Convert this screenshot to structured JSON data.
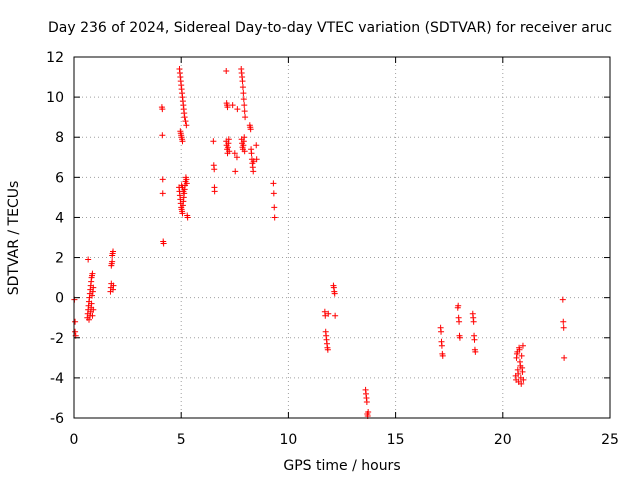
{
  "chart_data": {
    "type": "scatter",
    "title": "Day 236 of 2024, Sidereal Day-to-day VTEC variation (SDTVAR) for receiver aruc",
    "xlabel": "GPS time / hours",
    "ylabel": "SDTVAR / TECUs",
    "xlim": [
      0,
      25
    ],
    "ylim": [
      -6,
      12
    ],
    "xticks": [
      0,
      5,
      10,
      15,
      20,
      25
    ],
    "yticks": [
      -6,
      -4,
      -2,
      0,
      2,
      4,
      6,
      8,
      10,
      12
    ],
    "grid": true,
    "marker": "plus",
    "color": "#ff0000",
    "series": [
      {
        "name": "SDTVAR",
        "points": [
          [
            0.02,
            -0.1
          ],
          [
            0.05,
            -1.2
          ],
          [
            0.05,
            -1.7
          ],
          [
            0.08,
            -1.9
          ],
          [
            0.62,
            -1.0
          ],
          [
            0.64,
            -0.8
          ],
          [
            0.66,
            -0.6
          ],
          [
            0.66,
            1.9
          ],
          [
            0.68,
            -0.4
          ],
          [
            0.7,
            -0.2
          ],
          [
            0.7,
            -1.1
          ],
          [
            0.72,
            0.0
          ],
          [
            0.74,
            0.2
          ],
          [
            0.75,
            -0.9
          ],
          [
            0.76,
            0.4
          ],
          [
            0.78,
            0.6
          ],
          [
            0.78,
            -0.7
          ],
          [
            0.8,
            0.8
          ],
          [
            0.8,
            -0.5
          ],
          [
            0.82,
            1.0
          ],
          [
            0.82,
            -0.3
          ],
          [
            0.84,
            1.1
          ],
          [
            0.84,
            0.1
          ],
          [
            0.86,
            1.2
          ],
          [
            0.86,
            -0.9
          ],
          [
            0.88,
            0.3
          ],
          [
            0.9,
            0.5
          ],
          [
            0.9,
            -0.6
          ],
          [
            1.7,
            0.3
          ],
          [
            1.72,
            0.5
          ],
          [
            1.74,
            0.7
          ],
          [
            1.74,
            1.6
          ],
          [
            1.76,
            1.7
          ],
          [
            1.78,
            1.8
          ],
          [
            1.78,
            2.1
          ],
          [
            1.8,
            2.2
          ],
          [
            1.82,
            2.3
          ],
          [
            1.82,
            0.4
          ],
          [
            1.84,
            0.6
          ],
          [
            4.1,
            9.5
          ],
          [
            4.12,
            9.4
          ],
          [
            4.12,
            8.1
          ],
          [
            4.14,
            5.9
          ],
          [
            4.14,
            5.2
          ],
          [
            4.16,
            2.8
          ],
          [
            4.18,
            2.7
          ],
          [
            4.92,
            11.4
          ],
          [
            4.94,
            11.2
          ],
          [
            4.96,
            11.0
          ],
          [
            4.98,
            10.8
          ],
          [
            5.0,
            10.6
          ],
          [
            5.02,
            10.4
          ],
          [
            5.04,
            10.2
          ],
          [
            5.06,
            10.0
          ],
          [
            5.08,
            9.8
          ],
          [
            5.1,
            9.6
          ],
          [
            5.12,
            9.4
          ],
          [
            5.14,
            9.2
          ],
          [
            5.16,
            9.0
          ],
          [
            5.2,
            8.8
          ],
          [
            5.24,
            8.6
          ],
          [
            4.96,
            8.3
          ],
          [
            4.98,
            8.2
          ],
          [
            5.0,
            8.1
          ],
          [
            5.02,
            8.0
          ],
          [
            5.04,
            7.9
          ],
          [
            5.06,
            7.8
          ],
          [
            4.9,
            5.5
          ],
          [
            4.92,
            5.3
          ],
          [
            4.94,
            5.1
          ],
          [
            4.96,
            4.9
          ],
          [
            4.98,
            4.7
          ],
          [
            5.0,
            4.5
          ],
          [
            5.02,
            4.4
          ],
          [
            5.04,
            4.3
          ],
          [
            5.06,
            4.2
          ],
          [
            5.08,
            4.6
          ],
          [
            5.1,
            4.8
          ],
          [
            5.12,
            5.0
          ],
          [
            5.14,
            5.2
          ],
          [
            5.16,
            5.4
          ],
          [
            5.18,
            5.6
          ],
          [
            5.2,
            5.8
          ],
          [
            5.22,
            6.0
          ],
          [
            5.24,
            5.9
          ],
          [
            5.26,
            5.7
          ],
          [
            5.28,
            4.1
          ],
          [
            5.3,
            4.0
          ],
          [
            5.02,
            5.6
          ],
          [
            5.06,
            5.5
          ],
          [
            5.1,
            5.3
          ],
          [
            6.5,
            7.8
          ],
          [
            6.52,
            6.6
          ],
          [
            6.54,
            6.4
          ],
          [
            6.55,
            5.5
          ],
          [
            6.56,
            5.3
          ],
          [
            7.1,
            11.3
          ],
          [
            7.12,
            9.7
          ],
          [
            7.14,
            9.6
          ],
          [
            7.16,
            9.5
          ],
          [
            7.1,
            7.8
          ],
          [
            7.12,
            7.6
          ],
          [
            7.14,
            7.4
          ],
          [
            7.16,
            7.2
          ],
          [
            7.18,
            7.5
          ],
          [
            7.2,
            7.7
          ],
          [
            7.22,
            7.9
          ],
          [
            7.24,
            7.3
          ],
          [
            7.4,
            9.6
          ],
          [
            7.5,
            7.2
          ],
          [
            7.52,
            6.3
          ],
          [
            7.6,
            7.0
          ],
          [
            7.62,
            9.4
          ],
          [
            7.8,
            11.4
          ],
          [
            7.82,
            11.2
          ],
          [
            7.84,
            11.0
          ],
          [
            7.86,
            10.8
          ],
          [
            7.88,
            10.5
          ],
          [
            7.9,
            10.2
          ],
          [
            7.92,
            9.9
          ],
          [
            7.94,
            9.6
          ],
          [
            7.96,
            9.3
          ],
          [
            7.98,
            9.0
          ],
          [
            7.82,
            7.9
          ],
          [
            7.84,
            7.7
          ],
          [
            7.86,
            7.5
          ],
          [
            7.88,
            7.4
          ],
          [
            7.9,
            7.6
          ],
          [
            7.92,
            7.8
          ],
          [
            7.94,
            8.0
          ],
          [
            7.96,
            7.3
          ],
          [
            8.2,
            8.6
          ],
          [
            8.22,
            8.5
          ],
          [
            8.24,
            8.4
          ],
          [
            8.26,
            7.4
          ],
          [
            8.28,
            7.2
          ],
          [
            8.3,
            6.9
          ],
          [
            8.32,
            6.7
          ],
          [
            8.34,
            6.5
          ],
          [
            8.36,
            6.3
          ],
          [
            8.38,
            6.8
          ],
          [
            8.5,
            7.6
          ],
          [
            8.52,
            6.9
          ],
          [
            9.3,
            5.7
          ],
          [
            9.32,
            5.2
          ],
          [
            9.34,
            4.5
          ],
          [
            9.36,
            4.0
          ],
          [
            11.7,
            -0.7
          ],
          [
            11.72,
            -0.9
          ],
          [
            11.74,
            -1.7
          ],
          [
            11.76,
            -1.9
          ],
          [
            11.78,
            -2.1
          ],
          [
            11.8,
            -2.3
          ],
          [
            11.82,
            -2.5
          ],
          [
            11.84,
            -2.6
          ],
          [
            11.86,
            -0.8
          ],
          [
            12.1,
            0.6
          ],
          [
            12.12,
            0.5
          ],
          [
            12.14,
            0.3
          ],
          [
            12.16,
            0.2
          ],
          [
            12.18,
            -0.9
          ],
          [
            13.6,
            -4.6
          ],
          [
            13.62,
            -4.8
          ],
          [
            13.64,
            -5.0
          ],
          [
            13.66,
            -5.2
          ],
          [
            13.68,
            -5.8
          ],
          [
            13.7,
            -5.9
          ],
          [
            13.72,
            -5.7
          ],
          [
            17.1,
            -1.5
          ],
          [
            17.12,
            -1.7
          ],
          [
            17.14,
            -2.2
          ],
          [
            17.16,
            -2.4
          ],
          [
            17.18,
            -2.8
          ],
          [
            17.2,
            -2.9
          ],
          [
            17.9,
            -0.5
          ],
          [
            17.92,
            -0.4
          ],
          [
            17.94,
            -1.0
          ],
          [
            17.96,
            -1.2
          ],
          [
            17.98,
            -1.9
          ],
          [
            18.0,
            -2.0
          ],
          [
            18.6,
            -0.8
          ],
          [
            18.62,
            -1.0
          ],
          [
            18.64,
            -1.2
          ],
          [
            18.66,
            -1.9
          ],
          [
            18.68,
            -2.1
          ],
          [
            18.7,
            -2.6
          ],
          [
            18.72,
            -2.7
          ],
          [
            20.6,
            -3.9
          ],
          [
            20.62,
            -4.1
          ],
          [
            20.64,
            -3.0
          ],
          [
            20.66,
            -2.8
          ],
          [
            20.68,
            -2.7
          ],
          [
            20.7,
            -3.6
          ],
          [
            20.72,
            -3.8
          ],
          [
            20.74,
            -4.2
          ],
          [
            20.76,
            -2.5
          ],
          [
            20.78,
            -2.6
          ],
          [
            20.8,
            -3.2
          ],
          [
            20.82,
            -3.4
          ],
          [
            20.84,
            -4.0
          ],
          [
            20.86,
            -4.3
          ],
          [
            20.88,
            -2.9
          ],
          [
            20.9,
            -3.5
          ],
          [
            20.92,
            -3.7
          ],
          [
            20.94,
            -2.4
          ],
          [
            20.96,
            -4.1
          ],
          [
            22.8,
            -0.1
          ],
          [
            22.82,
            -1.2
          ],
          [
            22.84,
            -1.5
          ],
          [
            22.86,
            -3.0
          ]
        ]
      }
    ]
  }
}
